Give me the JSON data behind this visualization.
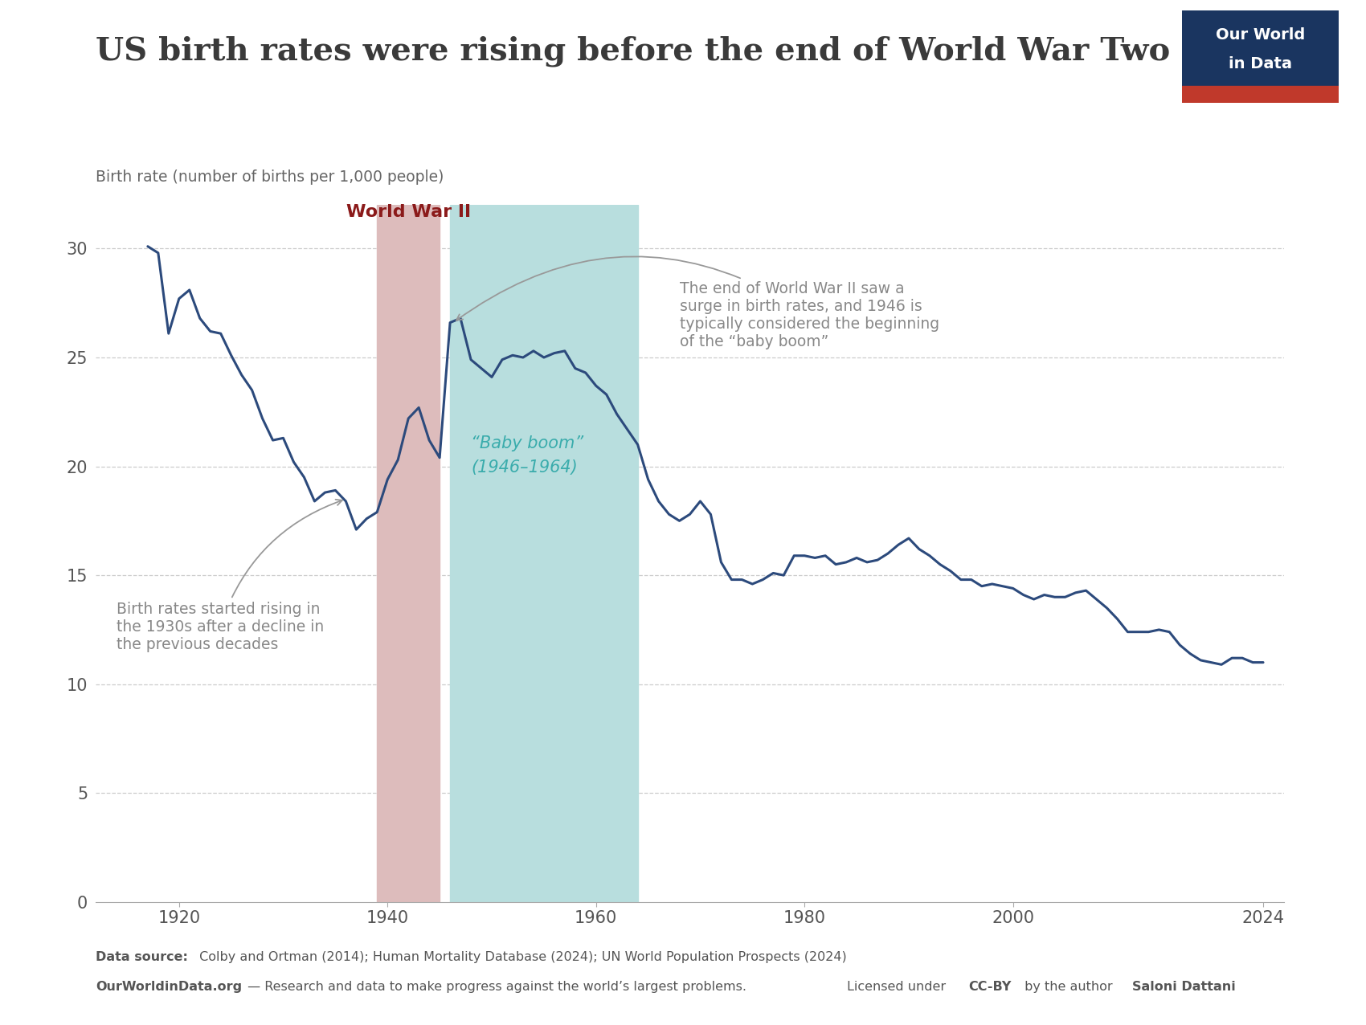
{
  "title": "US birth rates were rising before the end of World War Two",
  "ylabel": "Birth rate (number of births per 1,000 people)",
  "wwii_start": 1939,
  "wwii_end": 1945,
  "baby_boom_start": 1946,
  "baby_boom_end": 1964,
  "wwii_label": "World War II",
  "baby_boom_label": "“Baby boom”\n(1946–1964)",
  "annotation1_text": "Birth rates started rising in\nthe 1930s after a decline in\nthe previous decades",
  "annotation2_text": "The end of World War II saw a\nsurge in birth rates, and 1946 is\ntypically considered the beginning\nof the “baby boom”",
  "line_color": "#2c4a7c",
  "wwii_color": "#ddbcbc",
  "baby_boom_color": "#b8dede",
  "wwii_label_color": "#8b1a1a",
  "baby_boom_label_color": "#3aacac",
  "annotation_color": "#888888",
  "ylim": [
    0,
    32
  ],
  "yticks": [
    0,
    5,
    10,
    15,
    20,
    25,
    30
  ],
  "xticks": [
    1920,
    1940,
    1960,
    1980,
    2000,
    2024
  ],
  "xlim": [
    1912,
    2026
  ],
  "years": [
    1917,
    1918,
    1919,
    1920,
    1921,
    1922,
    1923,
    1924,
    1925,
    1926,
    1927,
    1928,
    1929,
    1930,
    1931,
    1932,
    1933,
    1934,
    1935,
    1936,
    1937,
    1938,
    1939,
    1940,
    1941,
    1942,
    1943,
    1944,
    1945,
    1946,
    1947,
    1948,
    1949,
    1950,
    1951,
    1952,
    1953,
    1954,
    1955,
    1956,
    1957,
    1958,
    1959,
    1960,
    1961,
    1962,
    1963,
    1964,
    1965,
    1966,
    1967,
    1968,
    1969,
    1970,
    1971,
    1972,
    1973,
    1974,
    1975,
    1976,
    1977,
    1978,
    1979,
    1980,
    1981,
    1982,
    1983,
    1984,
    1985,
    1986,
    1987,
    1988,
    1989,
    1990,
    1991,
    1992,
    1993,
    1994,
    1995,
    1996,
    1997,
    1998,
    1999,
    2000,
    2001,
    2002,
    2003,
    2004,
    2005,
    2006,
    2007,
    2008,
    2009,
    2010,
    2011,
    2012,
    2013,
    2014,
    2015,
    2016,
    2017,
    2018,
    2019,
    2020,
    2021,
    2022,
    2023,
    2024
  ],
  "birth_rates": [
    30.1,
    29.8,
    26.1,
    27.7,
    28.1,
    26.8,
    26.2,
    26.1,
    25.1,
    24.2,
    23.5,
    22.2,
    21.2,
    21.3,
    20.2,
    19.5,
    18.4,
    18.8,
    18.9,
    18.4,
    17.1,
    17.6,
    17.9,
    19.4,
    20.3,
    22.2,
    22.7,
    21.2,
    20.4,
    26.6,
    26.8,
    24.9,
    24.5,
    24.1,
    24.9,
    25.1,
    25.0,
    25.3,
    25.0,
    25.2,
    25.3,
    24.5,
    24.3,
    23.7,
    23.3,
    22.4,
    21.7,
    21.0,
    19.4,
    18.4,
    17.8,
    17.5,
    17.8,
    18.4,
    17.8,
    15.6,
    14.8,
    14.8,
    14.6,
    14.8,
    15.1,
    15.0,
    15.9,
    15.9,
    15.8,
    15.9,
    15.5,
    15.6,
    15.8,
    15.6,
    15.7,
    16.0,
    16.4,
    16.7,
    16.2,
    15.9,
    15.5,
    15.2,
    14.8,
    14.8,
    14.5,
    14.6,
    14.5,
    14.4,
    14.1,
    13.9,
    14.1,
    14.0,
    14.0,
    14.2,
    14.3,
    13.9,
    13.5,
    13.0,
    12.4,
    12.4,
    12.4,
    12.5,
    12.4,
    11.8,
    11.4,
    11.1,
    11.0,
    10.9,
    11.2,
    11.2,
    11.0,
    11.0
  ]
}
